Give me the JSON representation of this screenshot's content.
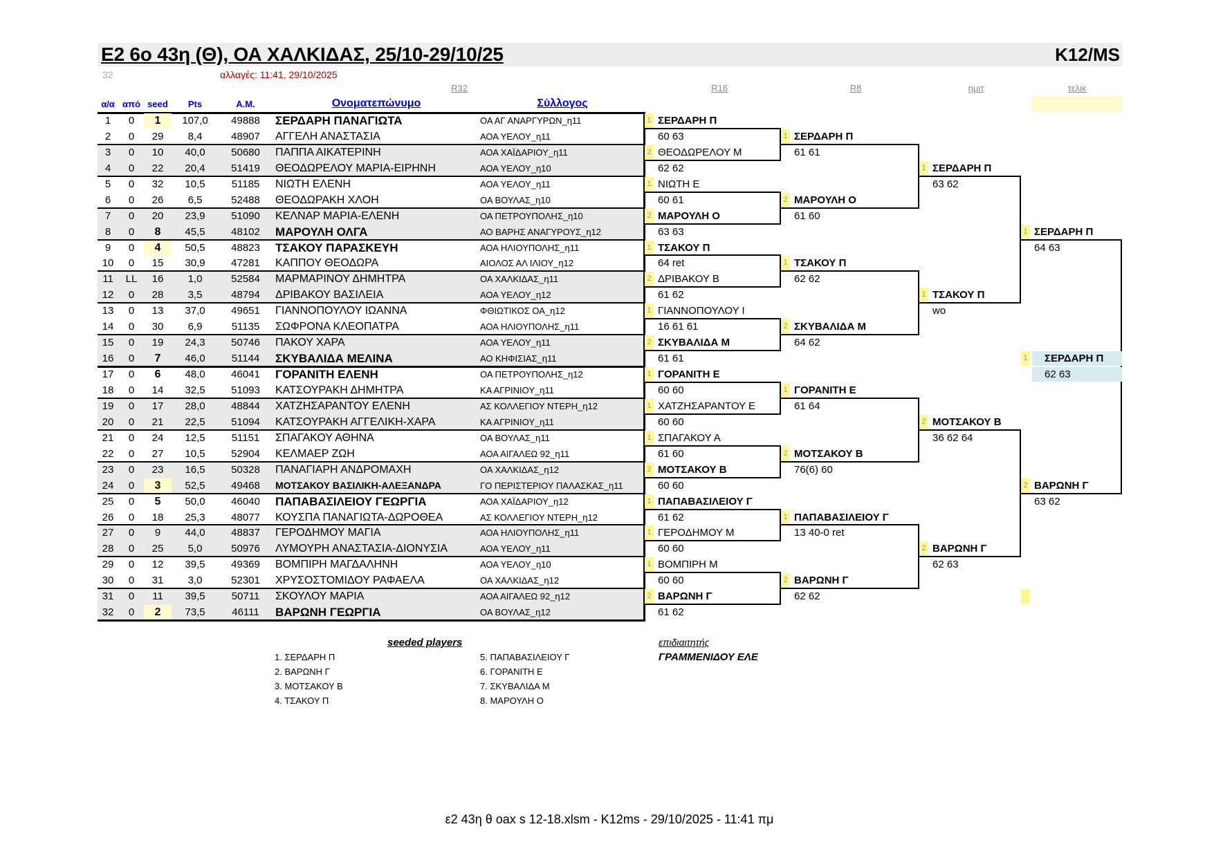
{
  "header": {
    "title": "Ε2 6ο 43η (Θ), ΟΑ ΧΑΛΚΙΔΑΣ, 25/10-29/10/25",
    "category": "K12/MS",
    "draw_size": "32",
    "changes": "αλλαγές: 11:41, 29/10/2025"
  },
  "rounds": {
    "r32": "R32",
    "r16": "R16",
    "r8": "R8",
    "sf": "ημιτ",
    "final": "τελικ"
  },
  "columns": {
    "aa": "α/α",
    "apo": "από",
    "seed": "seed",
    "pts": "Pts",
    "am": "A.M.",
    "name": "Ονοματεπώνυμο",
    "club": "Σύλλογος"
  },
  "colors": {
    "seed_highlight": "#fffacd",
    "winner_marker": "#fff59a",
    "shade": "#e9e9e9",
    "champion": "#d6eaf0",
    "header_blue": "#0000cc",
    "changes_red": "#b00000"
  },
  "players": [
    [
      "1",
      "0",
      "1",
      "107,0",
      "49888",
      "ΣΕΡΔΑΡΗ ΠΑΝΑΓΙΩΤΑ",
      "ΟΑ ΑΓ ΑΝΑΡΓΥΡΩΝ_η11"
    ],
    [
      "2",
      "0",
      "29",
      "8,4",
      "48907",
      "ΑΓΓΕΛΗ ΑΝΑΣΤΑΣΙΑ",
      "ΑΟΑ ΥΕΛΟΥ_η11"
    ],
    [
      "3",
      "0",
      "10",
      "40,0",
      "50680",
      "ΠΑΠΠΑ ΑΙΚΑΤΕΡΙΝΗ",
      "ΑΟΑ ΧΑΪΔΑΡΙΟΥ_η11"
    ],
    [
      "4",
      "0",
      "22",
      "20,4",
      "51419",
      "ΘΕΟΔΩΡΕΛΟΥ ΜΑΡΙΑ-ΕΙΡΗΝΗ",
      "ΑΟΑ ΥΕΛΟΥ_η10"
    ],
    [
      "5",
      "0",
      "32",
      "10,5",
      "51185",
      "ΝΙΩΤΗ ΕΛΕΝΗ",
      "ΑΟΑ ΥΕΛΟΥ_η11"
    ],
    [
      "6",
      "0",
      "26",
      "6,5",
      "52488",
      "ΘΕΟΔΩΡΑΚΗ ΧΛΟΗ",
      "ΟΑ ΒΟΥΛΑΣ_η10"
    ],
    [
      "7",
      "0",
      "20",
      "23,9",
      "51090",
      "ΚΕΛΝΑΡ ΜΑΡΙΑ-ΕΛΕΝΗ",
      "ΟΑ ΠΕΤΡΟΥΠΟΛΗΣ_η10"
    ],
    [
      "8",
      "0",
      "8",
      "45,5",
      "48102",
      "ΜΑΡΟΥΛΗ ΟΛΓΑ",
      "ΑΟ ΒΑΡΗΣ ΑΝΑΓΥΡΟΥΣ_η12"
    ],
    [
      "9",
      "0",
      "4",
      "50,5",
      "48823",
      "ΤΣΑΚΟΥ ΠΑΡΑΣΚΕΥΗ",
      "ΑΟΑ ΗΛΙΟΥΠΟΛΗΣ_η11"
    ],
    [
      "10",
      "0",
      "15",
      "30,9",
      "47281",
      "ΚΑΠΠΟΥ ΘΕΟΔΩΡΑ",
      "ΑΙΟΛΟΣ ΑΛ ΙΛΙΟΥ_η12"
    ],
    [
      "11",
      "LL",
      "16",
      "1,0",
      "52584",
      "ΜΑΡΜΑΡΙΝΟΥ ΔΗΜΗΤΡΑ",
      "ΟΑ ΧΑΛΚΙΔΑΣ_η11"
    ],
    [
      "12",
      "0",
      "28",
      "3,5",
      "48794",
      "ΔΡΙΒΑΚΟΥ ΒΑΣΙΛΕΙΑ",
      "ΑΟΑ ΥΕΛΟΥ_η12"
    ],
    [
      "13",
      "0",
      "13",
      "37,0",
      "49651",
      "ΓΙΑΝΝΟΠΟΥΛΟΥ ΙΩΑΝΝΑ",
      "ΦΘΙΩΤΙΚΟΣ ΟΑ_η12"
    ],
    [
      "14",
      "0",
      "30",
      "6,9",
      "51135",
      "ΣΩΦΡΟΝΑ ΚΛΕΟΠΑΤΡΑ",
      "ΑΟΑ ΗΛΙΟΥΠΟΛΗΣ_η11"
    ],
    [
      "15",
      "0",
      "19",
      "24,3",
      "50746",
      "ΠΑΚΟΥ ΧΑΡΑ",
      "ΑΟΑ ΥΕΛΟΥ_η11"
    ],
    [
      "16",
      "0",
      "7",
      "46,0",
      "51144",
      "ΣΚΥΒΑΛΙΔΑ ΜΕΛΙΝΑ",
      "ΑΟ ΚΗΦΙΣΙΑΣ_η11"
    ],
    [
      "17",
      "0",
      "6",
      "48,0",
      "46041",
      "ΓΟΡΑΝΙΤΗ ΕΛΕΝΗ",
      "ΟΑ ΠΕΤΡΟΥΠΟΛΗΣ_η12"
    ],
    [
      "18",
      "0",
      "14",
      "32,5",
      "51093",
      "ΚΑΤΣΟΥΡΑΚΗ ΔΗΜΗΤΡΑ",
      "ΚΑ ΑΓΡΙΝΙΟΥ_η11"
    ],
    [
      "19",
      "0",
      "17",
      "28,0",
      "48844",
      "ΧΑΤΖΗΣΑΡΑΝΤΟΥ ΕΛΕΝΗ",
      "ΑΣ ΚΟΛΛΕΓΙΟΥ ΝΤΕΡΗ_η12"
    ],
    [
      "20",
      "0",
      "21",
      "22,5",
      "51094",
      "ΚΑΤΣΟΥΡΑΚΗ ΑΓΓΕΛΙΚΗ-ΧΑΡΑ",
      "ΚΑ ΑΓΡΙΝΙΟΥ_η11"
    ],
    [
      "21",
      "0",
      "24",
      "12,5",
      "51151",
      "ΣΠΑΓΑΚΟΥ ΑΘΗΝΑ",
      "ΟΑ ΒΟΥΛΑΣ_η11"
    ],
    [
      "22",
      "0",
      "27",
      "10,5",
      "52904",
      "ΚΕΛΜΑΕΡ ΖΩΗ",
      "ΑΟΑ ΑΙΓΑΛΕΩ 92_η11"
    ],
    [
      "23",
      "0",
      "23",
      "16,5",
      "50328",
      "ΠΑΝΑΓΙΑΡΗ ΑΝΔΡΟΜΑΧΗ",
      "ΟΑ ΧΑΛΚΙΔΑΣ_η12"
    ],
    [
      "24",
      "0",
      "3",
      "52,5",
      "49468",
      "ΜΟΤΣΑΚΟΥ ΒΑΣΙΛΙΚΗ-ΑΛΕΞΑΝΔΡΑ",
      "ΓΟ ΠΕΡΙΣΤΕΡΙΟΥ ΠΑΛΑΣΚΑΣ_η11"
    ],
    [
      "25",
      "0",
      "5",
      "50,0",
      "46040",
      "ΠΑΠΑΒΑΣΙΛΕΙΟΥ ΓΕΩΡΓΙΑ",
      "ΑΟΑ ΧΑΪΔΑΡΙΟΥ_η12"
    ],
    [
      "26",
      "0",
      "18",
      "25,3",
      "48077",
      "ΚΟΥΣΠΑ ΠΑΝΑΓΙΩΤΑ-ΔΩΡΟΘΕΑ",
      "ΑΣ ΚΟΛΛΕΓΙΟΥ ΝΤΕΡΗ_η12"
    ],
    [
      "27",
      "0",
      "9",
      "44,0",
      "48837",
      "ΓΕΡΟΔΗΜΟΥ ΜΑΓΙΑ",
      "ΑΟΑ ΗΛΙΟΥΠΟΛΗΣ_η11"
    ],
    [
      "28",
      "0",
      "25",
      "5,0",
      "50976",
      "ΛΥΜΟΥΡΗ ΑΝΑΣΤΑΣΙΑ-ΔΙΟΝΥΣΙΑ",
      "ΑΟΑ ΥΕΛΟΥ_η11"
    ],
    [
      "29",
      "0",
      "12",
      "39,5",
      "49369",
      "ΒΟΜΠΙΡΗ ΜΑΓΔΑΛΗΝΗ",
      "ΑΟΑ ΥΕΛΟΥ_η10"
    ],
    [
      "30",
      "0",
      "31",
      "3,0",
      "52301",
      "ΧΡΥΣΟΣΤΟΜΙΔΟΥ ΡΑΦΑΕΛΑ",
      "ΟΑ ΧΑΛΚΙΔΑΣ_η12"
    ],
    [
      "31",
      "0",
      "11",
      "39,5",
      "50711",
      "ΣΚΟΥΛΟΥ ΜΑΡΙΑ",
      "ΑΟΑ ΑΙΓΑΛΕΩ 92_η12"
    ],
    [
      "32",
      "0",
      "2",
      "73,5",
      "46111",
      "ΒΑΡΩΝΗ ΓΕΩΡΓΙΑ",
      "ΟΑ ΒΟΥΛΑΣ_η12"
    ]
  ],
  "bracket": {
    "r16": [
      {
        "pos": "1",
        "name": "ΣΕΡΔΑΡΗ Π",
        "bold": true,
        "score": "60 63"
      },
      {
        "pos": "2",
        "name": "ΘΕΟΔΩΡΕΛΟΥ Μ",
        "bold": false,
        "score": "62 62"
      },
      {
        "pos": "1",
        "name": "ΝΙΩΤΗ Ε",
        "bold": false,
        "score": "60 61"
      },
      {
        "pos": "2",
        "name": "ΜΑΡΟΥΛΗ Ο",
        "bold": true,
        "score": "63 63"
      },
      {
        "pos": "1",
        "name": "ΤΣΑΚΟΥ Π",
        "bold": true,
        "score": "64 ret"
      },
      {
        "pos": "2",
        "name": "ΔΡΙΒΑΚΟΥ Β",
        "bold": false,
        "score": "61 62"
      },
      {
        "pos": "1",
        "name": "ΓΙΑΝΝΟΠΟΥΛΟΥ Ι",
        "bold": false,
        "score": "16 61 61"
      },
      {
        "pos": "2",
        "name": "ΣΚΥΒΑΛΙΔΑ Μ",
        "bold": true,
        "score": "61 61"
      },
      {
        "pos": "1",
        "name": "ΓΟΡΑΝΙΤΗ Ε",
        "bold": true,
        "score": "60 60"
      },
      {
        "pos": "1",
        "name": "ΧΑΤΖΗΣΑΡΑΝΤΟΥ Ε",
        "bold": false,
        "score": "60 60"
      },
      {
        "pos": "1",
        "name": "ΣΠΑΓΑΚΟΥ Α",
        "bold": false,
        "score": "61 60"
      },
      {
        "pos": "2",
        "name": "ΜΟΤΣΑΚΟΥ Β",
        "bold": true,
        "score": "60 60"
      },
      {
        "pos": "1",
        "name": "ΠΑΠΑΒΑΣΙΛΕΙΟΥ Γ",
        "bold": true,
        "score": "61 62"
      },
      {
        "pos": "1",
        "name": "ΓΕΡΟΔΗΜΟΥ Μ",
        "bold": false,
        "score": "60 60"
      },
      {
        "pos": "1",
        "name": "ΒΟΜΠΙΡΗ Μ",
        "bold": false,
        "score": "60 60"
      },
      {
        "pos": "2",
        "name": "ΒΑΡΩΝΗ Γ",
        "bold": true,
        "score": "61 62"
      }
    ],
    "r8": [
      {
        "pos": "1",
        "name": "ΣΕΡΔΑΡΗ Π",
        "bold": true,
        "score": "61 61"
      },
      {
        "pos": "2",
        "name": "ΜΑΡΟΥΛΗ Ο",
        "bold": true,
        "score": "61 60"
      },
      {
        "pos": "1",
        "name": "ΤΣΑΚΟΥ Π",
        "bold": true,
        "score": "62 62"
      },
      {
        "pos": "2",
        "name": "ΣΚΥΒΑΛΙΔΑ Μ",
        "bold": true,
        "score": "64 62"
      },
      {
        "pos": "1",
        "name": "ΓΟΡΑΝΙΤΗ Ε",
        "bold": true,
        "score": "61 64"
      },
      {
        "pos": "2",
        "name": "ΜΟΤΣΑΚΟΥ Β",
        "bold": true,
        "score": "76(6) 60"
      },
      {
        "pos": "1",
        "name": "ΠΑΠΑΒΑΣΙΛΕΙΟΥ Γ",
        "bold": true,
        "score": "13 40-0 ret"
      },
      {
        "pos": "2",
        "name": "ΒΑΡΩΝΗ Γ",
        "bold": true,
        "score": "62 62"
      }
    ],
    "sf": [
      {
        "pos": "1",
        "name": "ΣΕΡΔΑΡΗ Π",
        "bold": true,
        "score": "63 62"
      },
      {
        "pos": "1",
        "name": "ΤΣΑΚΟΥ Π",
        "bold": true,
        "score": "wo"
      },
      {
        "pos": "2",
        "name": "ΜΟΤΣΑΚΟΥ Β",
        "bold": true,
        "score": "36 62 64"
      },
      {
        "pos": "2",
        "name": "ΒΑΡΩΝΗ Γ",
        "bold": true,
        "score": "62 63"
      }
    ],
    "final": [
      {
        "pos": "1",
        "name": "ΣΕΡΔΑΡΗ Π",
        "bold": true,
        "score": "64 63"
      },
      {
        "pos": "2",
        "name": "ΒΑΡΩΝΗ Γ",
        "bold": true,
        "score": "63 62"
      }
    ],
    "champion": {
      "pos": "1",
      "name": "ΣΕΡΔΑΡΗ Π",
      "bold": true,
      "score": "62 63"
    }
  },
  "seeded": {
    "title": "seeded players",
    "list": [
      "1. ΣΕΡΔΑΡΗ Π",
      "2. ΒΑΡΩΝΗ Γ",
      "3. ΜΟΤΣΑΚΟΥ Β",
      "4. ΤΣΑΚΟΥ Π",
      "5. ΠΑΠΑΒΑΣΙΛΕΙΟΥ Γ",
      "6. ΓΟΡΑΝΙΤΗ Ε",
      "7. ΣΚΥΒΑΛΙΔΑ Μ",
      "8. ΜΑΡΟΥΛΗ Ο"
    ]
  },
  "referee": {
    "label": "επιδιαιτητής",
    "name": "ΓΡΑΜΜΕΝΙΔΟΥ ΕΛΕ"
  },
  "footer": "ε2 43η θ oax s 12-18.xlsm -  K12ms - 29/10/2025 - 11:41 πμ"
}
